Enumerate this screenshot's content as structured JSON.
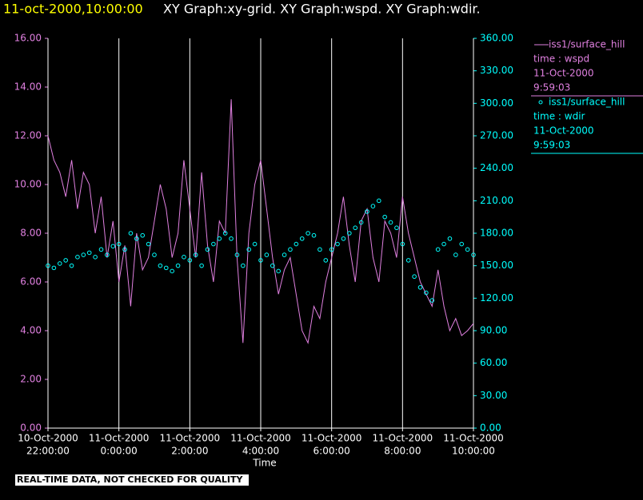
{
  "chart_data": {
    "type": "line",
    "title": "11-oct-2000,10:00:00",
    "subtitle": "XY Graph:xy-grid.  XY Graph:wspd.  XY Graph:wdir.",
    "xlabel": "Time",
    "note": "REAL-TIME DATA, NOT CHECKED FOR QUALITY",
    "xlim": [
      "2000-10-10T22:00:00",
      "2000-10-11T10:00:00"
    ],
    "xticks": [
      {
        "value": "2000-10-10T22:00:00",
        "label": [
          "10-Oct-2000",
          "22:00:00"
        ]
      },
      {
        "value": "2000-10-11T00:00:00",
        "label": [
          "11-Oct-2000",
          "0:00:00"
        ]
      },
      {
        "value": "2000-10-11T02:00:00",
        "label": [
          "11-Oct-2000",
          "2:00:00"
        ]
      },
      {
        "value": "2000-10-11T04:00:00",
        "label": [
          "11-Oct-2000",
          "4:00:00"
        ]
      },
      {
        "value": "2000-10-11T06:00:00",
        "label": [
          "11-Oct-2000",
          "6:00:00"
        ]
      },
      {
        "value": "2000-10-11T08:00:00",
        "label": [
          "11-Oct-2000",
          "8:00:00"
        ]
      },
      {
        "value": "2000-10-11T10:00:00",
        "label": [
          "11-Oct-2000",
          "10:00:00"
        ]
      }
    ],
    "ylim": [
      0,
      16
    ],
    "yticks": [
      {
        "value": 0,
        "label": "0.00"
      },
      {
        "value": 2,
        "label": "2.00"
      },
      {
        "value": 4,
        "label": "4.00"
      },
      {
        "value": 6,
        "label": "6.00"
      },
      {
        "value": 8,
        "label": "8.00"
      },
      {
        "value": 10,
        "label": "10.00"
      },
      {
        "value": 12,
        "label": "12.00"
      },
      {
        "value": 14,
        "label": "14.00"
      },
      {
        "value": 16,
        "label": "16.00"
      }
    ],
    "y2lim": [
      0,
      360
    ],
    "y2ticks": [
      {
        "value": 0,
        "label": "0.00"
      },
      {
        "value": 30,
        "label": "30.00"
      },
      {
        "value": 60,
        "label": "60.00"
      },
      {
        "value": 90,
        "label": "90.00"
      },
      {
        "value": 120,
        "label": "120.00"
      },
      {
        "value": 150,
        "label": "150.00"
      },
      {
        "value": 180,
        "label": "180.00"
      },
      {
        "value": 210,
        "label": "210.00"
      },
      {
        "value": 240,
        "label": "240.00"
      },
      {
        "value": 270,
        "label": "270.00"
      },
      {
        "value": 300,
        "label": "300.00"
      },
      {
        "value": 330,
        "label": "330.00"
      },
      {
        "value": 360,
        "label": "360.00"
      }
    ],
    "grid": true,
    "x": [
      "2000-10-10T22:00:00",
      "2000-10-10T22:10:00",
      "2000-10-10T22:20:00",
      "2000-10-10T22:30:00",
      "2000-10-10T22:40:00",
      "2000-10-10T22:50:00",
      "2000-10-10T23:00:00",
      "2000-10-10T23:10:00",
      "2000-10-10T23:20:00",
      "2000-10-10T23:30:00",
      "2000-10-10T23:40:00",
      "2000-10-10T23:50:00",
      "2000-10-11T00:00:00",
      "2000-10-11T00:10:00",
      "2000-10-11T00:20:00",
      "2000-10-11T00:30:00",
      "2000-10-11T00:40:00",
      "2000-10-11T00:50:00",
      "2000-10-11T01:00:00",
      "2000-10-11T01:10:00",
      "2000-10-11T01:20:00",
      "2000-10-11T01:30:00",
      "2000-10-11T01:40:00",
      "2000-10-11T01:50:00",
      "2000-10-11T02:00:00",
      "2000-10-11T02:10:00",
      "2000-10-11T02:20:00",
      "2000-10-11T02:30:00",
      "2000-10-11T02:40:00",
      "2000-10-11T02:50:00",
      "2000-10-11T03:00:00",
      "2000-10-11T03:10:00",
      "2000-10-11T03:20:00",
      "2000-10-11T03:30:00",
      "2000-10-11T03:40:00",
      "2000-10-11T03:50:00",
      "2000-10-11T04:00:00",
      "2000-10-11T04:10:00",
      "2000-10-11T04:20:00",
      "2000-10-11T04:30:00",
      "2000-10-11T04:40:00",
      "2000-10-11T04:50:00",
      "2000-10-11T05:00:00",
      "2000-10-11T05:10:00",
      "2000-10-11T05:20:00",
      "2000-10-11T05:30:00",
      "2000-10-11T05:40:00",
      "2000-10-11T05:50:00",
      "2000-10-11T06:00:00",
      "2000-10-11T06:10:00",
      "2000-10-11T06:20:00",
      "2000-10-11T06:30:00",
      "2000-10-11T06:40:00",
      "2000-10-11T06:50:00",
      "2000-10-11T07:00:00",
      "2000-10-11T07:10:00",
      "2000-10-11T07:20:00",
      "2000-10-11T07:30:00",
      "2000-10-11T07:40:00",
      "2000-10-11T07:50:00",
      "2000-10-11T08:00:00",
      "2000-10-11T08:10:00",
      "2000-10-11T08:20:00",
      "2000-10-11T08:30:00",
      "2000-10-11T08:40:00",
      "2000-10-11T08:50:00",
      "2000-10-11T09:00:00",
      "2000-10-11T09:10:00",
      "2000-10-11T09:20:00",
      "2000-10-11T09:30:00",
      "2000-10-11T09:40:00",
      "2000-10-11T09:50:00",
      "2000-10-11T10:00:00"
    ],
    "series": [
      {
        "name": "iss1/surface_hill",
        "legend_lines": [
          "time : wspd",
          "11-Oct-2000",
          "9:59:03"
        ],
        "color": "#e080e0",
        "kind": "line",
        "values": [
          12,
          11,
          10.5,
          9.5,
          11,
          9,
          10.5,
          10,
          8,
          9.5,
          7,
          8.5,
          6,
          7.5,
          5,
          8,
          6.5,
          7,
          8.5,
          10,
          9,
          7,
          8,
          11,
          9,
          7,
          10.5,
          7.5,
          6,
          8.5,
          8,
          13.5,
          7,
          3.5,
          8,
          10,
          11,
          9,
          7,
          5.5,
          6.5,
          7,
          5.5,
          4,
          3.5,
          5,
          4.5,
          6,
          7,
          8,
          9.5,
          7.5,
          6,
          8.5,
          9,
          7,
          6,
          8.5,
          8,
          7,
          9.5,
          8,
          7,
          6,
          5.5,
          5,
          6.5,
          5,
          4,
          4.5,
          3.8,
          4,
          4.3
        ]
      },
      {
        "name": "iss1/surface_hill",
        "legend_lines": [
          "time : wdir",
          "11-Oct-2000",
          "9:59:03"
        ],
        "color": "#00ffff",
        "kind": "scatter",
        "axis": "y2",
        "values": [
          150,
          148,
          152,
          155,
          150,
          158,
          160,
          162,
          158,
          165,
          160,
          168,
          170,
          165,
          180,
          175,
          178,
          170,
          160,
          150,
          148,
          145,
          150,
          158,
          155,
          160,
          150,
          165,
          170,
          175,
          180,
          175,
          160,
          150,
          165,
          170,
          155,
          160,
          150,
          145,
          160,
          165,
          170,
          175,
          180,
          178,
          165,
          155,
          165,
          170,
          175,
          180,
          185,
          190,
          200,
          205,
          210,
          195,
          190,
          185,
          170,
          155,
          140,
          130,
          125,
          118,
          165,
          170,
          175,
          160,
          170,
          165,
          160
        ]
      }
    ]
  }
}
